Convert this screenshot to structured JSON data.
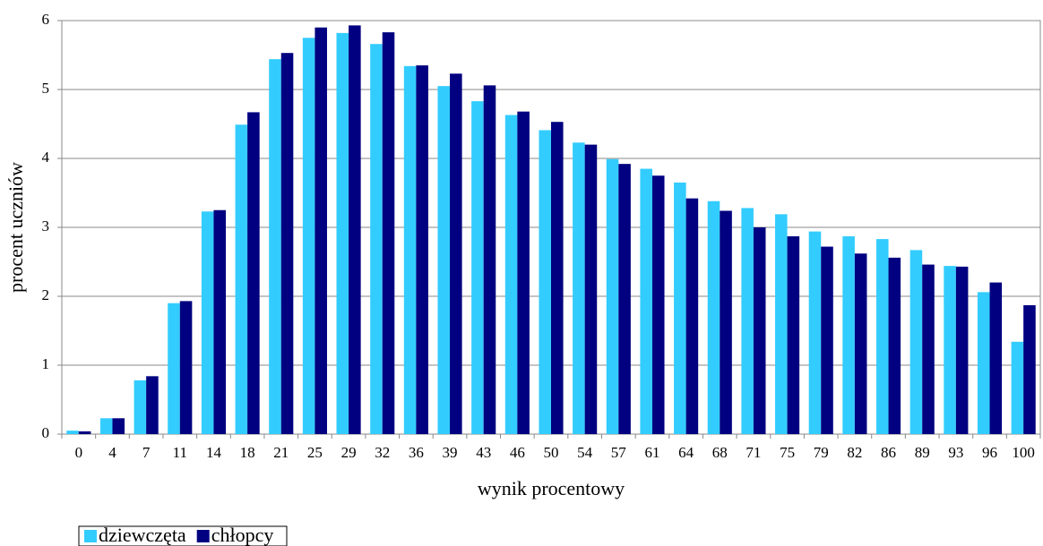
{
  "chart_data": {
    "type": "bar",
    "x_label": "wynik procentowy",
    "y_label": "procent uczniów",
    "categories": [
      "0",
      "4",
      "7",
      "11",
      "14",
      "18",
      "21",
      "25",
      "29",
      "32",
      "36",
      "39",
      "43",
      "46",
      "50",
      "54",
      "57",
      "61",
      "64",
      "68",
      "71",
      "75",
      "79",
      "82",
      "86",
      "89",
      "93",
      "96",
      "100"
    ],
    "series": [
      {
        "name": "dziewczęta",
        "color": "#33ccff",
        "values": [
          0.05,
          0.23,
          0.78,
          1.9,
          3.23,
          4.49,
          5.44,
          5.75,
          5.82,
          5.66,
          5.34,
          5.05,
          4.83,
          4.63,
          4.41,
          4.23,
          3.99,
          3.85,
          3.65,
          3.38,
          3.28,
          3.19,
          2.94,
          2.87,
          2.83,
          2.67,
          2.44,
          2.06,
          1.34
        ]
      },
      {
        "name": "chłopcy",
        "color": "#000080",
        "values": [
          0.04,
          0.23,
          0.84,
          1.93,
          3.25,
          4.67,
          5.53,
          5.9,
          5.93,
          5.83,
          5.35,
          5.23,
          5.06,
          4.68,
          4.53,
          4.2,
          3.92,
          3.75,
          3.42,
          3.24,
          3.0,
          2.87,
          2.72,
          2.62,
          2.56,
          2.46,
          2.43,
          2.2,
          1.87
        ]
      }
    ],
    "ylim": [
      0,
      6
    ],
    "yticks": [
      0,
      1,
      2,
      3,
      4,
      5,
      6
    ],
    "grid": true,
    "legend": "bottom-left"
  }
}
